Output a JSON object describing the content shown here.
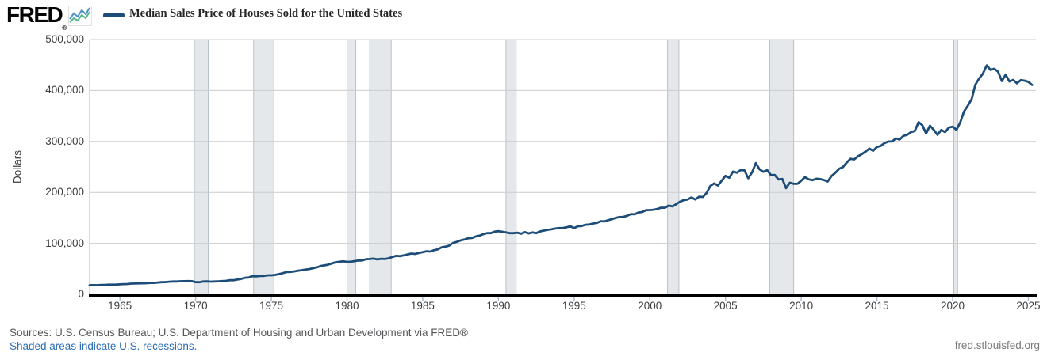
{
  "header": {
    "logo_text": "FRED",
    "logo_registered": "®",
    "sparkline_colors": {
      "blue": "#4a90c9",
      "green": "#55b88a"
    },
    "legend": {
      "series_label": "Median Sales Price of Houses Sold for the United States",
      "swatch_color": "#1c4c78"
    }
  },
  "chart_data": {
    "type": "line",
    "title": "Median Sales Price of Houses Sold for the United States",
    "ylabel": "Dollars",
    "xlabel": "",
    "frequency": "quarterly",
    "x_start_year": 1963,
    "xlim": [
      1963,
      2025.5
    ],
    "ylim": [
      0,
      500000
    ],
    "grid": "horizontal",
    "legend_position": "top-left",
    "line_color": "#1c4c78",
    "recession_fill": "#e4e8eb",
    "recession_edge": "#b9c2ca",
    "gridline_color": "#cccccc",
    "axis_color": "#000000",
    "tick_color": "#a9bdd1",
    "ytick_labels": [
      "0",
      "100,000",
      "200,000",
      "300,000",
      "400,000",
      "500,000"
    ],
    "xtick_labels": [
      "1965",
      "1970",
      "1975",
      "1980",
      "1985",
      "1990",
      "1995",
      "2000",
      "2005",
      "2010",
      "2015",
      "2020",
      "2025"
    ],
    "recessions": [
      [
        1969.92,
        1970.83
      ],
      [
        1973.83,
        1975.17
      ],
      [
        1980.0,
        1980.58
      ],
      [
        1981.5,
        1982.92
      ],
      [
        1990.5,
        1991.17
      ],
      [
        2001.17,
        2001.92
      ],
      [
        2007.92,
        2009.5
      ],
      [
        2020.08,
        2020.33
      ]
    ],
    "values": [
      17800,
      18000,
      17900,
      18500,
      18500,
      18900,
      19000,
      19100,
      19600,
      20000,
      20200,
      21000,
      21100,
      21400,
      21600,
      21700,
      22400,
      22400,
      23100,
      23700,
      23900,
      24700,
      25100,
      25100,
      25600,
      25700,
      25900,
      25700,
      23900,
      23700,
      25200,
      25300,
      24800,
      25200,
      25500,
      26000,
      26400,
      27600,
      27600,
      28900,
      30200,
      32500,
      32900,
      35500,
      35200,
      35800,
      36000,
      37300,
      37200,
      38100,
      39600,
      41500,
      43700,
      43900,
      44800,
      46300,
      47200,
      48500,
      49500,
      51100,
      53000,
      55500,
      56800,
      58100,
      60500,
      62900,
      63800,
      64700,
      63700,
      64000,
      65000,
      66300,
      66300,
      68800,
      69200,
      70000,
      68500,
      69700,
      69300,
      70600,
      73300,
      75500,
      74800,
      76400,
      78200,
      80000,
      79200,
      81100,
      82800,
      84500,
      83900,
      86600,
      88200,
      92200,
      93500,
      95500,
      100800,
      103000,
      105800,
      107500,
      110000,
      110500,
      113500,
      115000,
      118000,
      120000,
      120000,
      123000,
      123900,
      122900,
      121500,
      120000,
      120000,
      121000,
      119000,
      122000,
      119500,
      121500,
      120000,
      123500,
      125000,
      126500,
      127500,
      129000,
      130000,
      130000,
      131500,
      133500,
      130000,
      133500,
      134000,
      136500,
      137000,
      139000,
      140000,
      143500,
      143000,
      145500,
      147500,
      150000,
      151500,
      152000,
      154000,
      157500,
      157000,
      160500,
      161500,
      165000,
      165300,
      166000,
      167500,
      170000,
      169800,
      174000,
      172500,
      177000,
      181800,
      185000,
      186000,
      190000,
      186000,
      191400,
      191000,
      198800,
      212700,
      217600,
      213500,
      223000,
      232500,
      228700,
      240900,
      238600,
      243800,
      243200,
      227800,
      239100,
      257400,
      245200,
      240300,
      243700,
      233900,
      234300,
      225300,
      226400,
      208400,
      219000,
      216700,
      216900,
      222900,
      229900,
      225500,
      224000,
      226900,
      226100,
      224300,
      221200,
      232000,
      238400,
      246200,
      249600,
      258400,
      265800,
      264800,
      270900,
      275200,
      280200,
      285800,
      281700,
      289200,
      291100,
      296700,
      299800,
      299800,
      306000,
      303800,
      310900,
      313100,
      318200,
      320500,
      337900,
      331800,
      315600,
      330900,
      322800,
      313000,
      322500,
      318400,
      327100,
      329000,
      322600,
      337500,
      358700,
      369800,
      382600,
      411200,
      423600,
      433100,
      449300,
      440300,
      442600,
      436800,
      418500,
      431000,
      417700,
      420800,
      414200,
      420400,
      419200,
      416900,
      410800
    ]
  },
  "footer": {
    "sources": "Sources: U.S. Census Bureau; U.S. Department of Housing and Urban Development via FRED®",
    "shaded_note": "Shaded areas indicate U.S. recessions.",
    "site": "fred.stlouisfed.org"
  }
}
